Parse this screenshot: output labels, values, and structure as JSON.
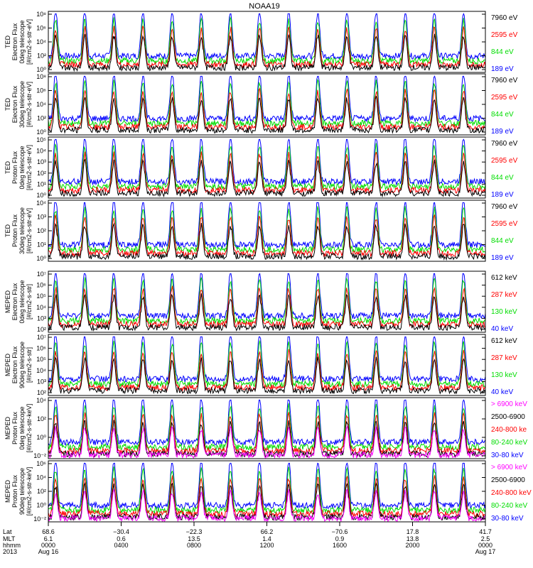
{
  "title": "NOAA19",
  "panels": [
    {
      "ylabel": [
        "TED",
        "Electron Flux",
        "0deg telescope",
        "[#/cm2-s-str-eV]"
      ],
      "ticks": [
        "10⁸",
        "10⁶",
        "10⁴",
        "10²",
        "10⁰"
      ],
      "legend": [
        {
          "text": "7960 eV",
          "color": "#000000"
        },
        {
          "text": "2595 eV",
          "color": "#ff0000"
        },
        {
          "text": "844 eV",
          "color": "#00dd00"
        },
        {
          "text": "189 eV",
          "color": "#0000ff"
        }
      ]
    },
    {
      "ylabel": [
        "TED",
        "Electron Flux",
        "30deg telescope",
        "[#/cm2-s-str-eV]"
      ],
      "ticks": [
        "10⁸",
        "10⁶",
        "10⁴",
        "10²",
        "10⁰"
      ],
      "legend": [
        {
          "text": "7960 eV",
          "color": "#000000"
        },
        {
          "text": "2595 eV",
          "color": "#ff0000"
        },
        {
          "text": "844 eV",
          "color": "#00dd00"
        },
        {
          "text": "189 eV",
          "color": "#0000ff"
        }
      ]
    },
    {
      "ylabel": [
        "TED",
        "Proton Flux",
        "0deg telescope",
        "[#/cm2-s-str-eV]"
      ],
      "ticks": [
        "10⁵",
        "10⁴",
        "10³",
        "10²",
        "10¹",
        "10⁰"
      ],
      "legend": [
        {
          "text": "7960 eV",
          "color": "#000000"
        },
        {
          "text": "2595 eV",
          "color": "#ff0000"
        },
        {
          "text": "844 eV",
          "color": "#00dd00"
        },
        {
          "text": "189 eV",
          "color": "#0000ff"
        }
      ]
    },
    {
      "ylabel": [
        "TED",
        "Proton Flux",
        "30deg telescope",
        "[#/cm2-s-str-eV]"
      ],
      "ticks": [
        "10⁴",
        "10³",
        "10²",
        "10¹",
        "10⁰"
      ],
      "legend": [
        {
          "text": "7960 eV",
          "color": "#000000"
        },
        {
          "text": "2595 eV",
          "color": "#ff0000"
        },
        {
          "text": "844 eV",
          "color": "#00dd00"
        },
        {
          "text": "189 eV",
          "color": "#0000ff"
        }
      ]
    },
    {
      "ylabel": [
        "MEPED",
        "Electron Flux",
        "0deg telescope",
        "[#/cm2-s-str]"
      ],
      "ticks": [
        "10⁷",
        "10⁶",
        "10⁵",
        "10⁴",
        "10³",
        "10²"
      ],
      "legend": [
        {
          "text": "612 keV",
          "color": "#000000"
        },
        {
          "text": "287 keV",
          "color": "#ff0000"
        },
        {
          "text": "130 keV",
          "color": "#00dd00"
        },
        {
          "text": "40 keV",
          "color": "#0000ff"
        }
      ]
    },
    {
      "ylabel": [
        "MEPED",
        "Electron Flux",
        "90deg telescope",
        "[#/cm2-s-str]"
      ],
      "ticks": [
        "10⁷",
        "10⁶",
        "10⁵",
        "10⁴",
        "10³",
        "10²"
      ],
      "legend": [
        {
          "text": "612 keV",
          "color": "#000000"
        },
        {
          "text": "287 keV",
          "color": "#ff0000"
        },
        {
          "text": "130 keV",
          "color": "#00dd00"
        },
        {
          "text": "40 keV",
          "color": "#0000ff"
        }
      ]
    },
    {
      "ylabel": [
        "MEPED",
        "Proton Flux",
        "0deg telescope",
        "[#/cm2-s-str-keV]"
      ],
      "ticks": [
        "10⁴",
        "10²",
        "10⁰",
        "10⁻²"
      ],
      "legend": [
        {
          "text": "> 6900 keV",
          "color": "#ff00ff"
        },
        {
          "text": "2500-6900",
          "color": "#000000"
        },
        {
          "text": "240-800 ke",
          "color": "#ff0000"
        },
        {
          "text": "80-240 keV",
          "color": "#00dd00"
        },
        {
          "text": "30-80 keV",
          "color": "#0000ff"
        }
      ]
    },
    {
      "ylabel": [
        "MEPED",
        "Proton Flux",
        "90deg telescope",
        "[#/cm2-s-str-keV]"
      ],
      "ticks": [
        "10⁶",
        "10⁴",
        "10²",
        "10⁰",
        "10⁻²"
      ],
      "legend": [
        {
          "text": "> 6900 keV",
          "color": "#ff00ff"
        },
        {
          "text": "2500-6900",
          "color": "#000000"
        },
        {
          "text": "240-800 keV",
          "color": "#ff0000"
        },
        {
          "text": "80-240 keV",
          "color": "#00dd00"
        },
        {
          "text": "30-80 keV",
          "color": "#0000ff"
        }
      ]
    }
  ],
  "xaxis": {
    "row_labels": [
      "Lat",
      "MLT",
      "hhmm",
      "2013"
    ],
    "columns": [
      {
        "lat": "68.6",
        "mlt": "6.1",
        "hhmm": "0000",
        "date": "Aug 16"
      },
      {
        "lat": "−30.4",
        "mlt": "0.6",
        "hhmm": "0400",
        "date": ""
      },
      {
        "lat": "−22.3",
        "mlt": "13.5",
        "hhmm": "0800",
        "date": ""
      },
      {
        "lat": "66.2",
        "mlt": "1.4",
        "hhmm": "1200",
        "date": ""
      },
      {
        "lat": "−70.6",
        "mlt": "0.9",
        "hhmm": "1600",
        "date": ""
      },
      {
        "lat": "17.8",
        "mlt": "13.8",
        "hhmm": "2000",
        "date": ""
      },
      {
        "lat": "41.7",
        "mlt": "2.5",
        "hhmm": "0000",
        "date": "Aug 17"
      }
    ]
  },
  "chart_data": {
    "type": "line",
    "title": "NOAA19",
    "x_range": [
      "2013-08-16 00:00",
      "2013-08-17 00:00"
    ],
    "y_scale": "log",
    "pass_count": 15,
    "note_series": "Each panel shows 4-5 energy channels as dense time series of particle flux with periodic peaks at radiation belt / auroral crossings."
  }
}
